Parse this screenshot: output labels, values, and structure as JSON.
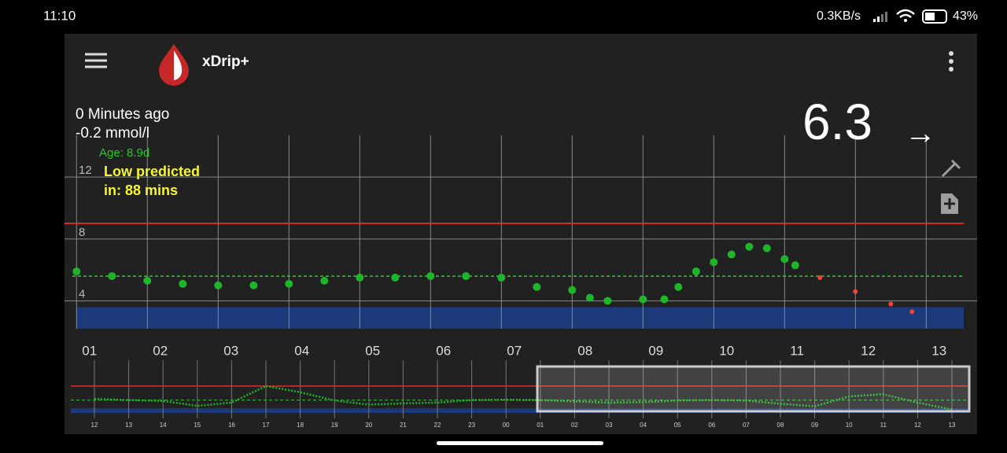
{
  "status_bar": {
    "time": "11:10",
    "network": "0.3KB/s",
    "battery": "43%"
  },
  "app_bar": {
    "title": "xDrip+"
  },
  "reading": {
    "minutes_ago": "0 Minutes ago",
    "delta": "-0.2 mmol/l",
    "age": "Age: 8.9d",
    "prediction": [
      "Low predicted",
      "in: 88 mins"
    ],
    "value": "6.3",
    "trend": "→"
  },
  "chart_data": [
    {
      "type": "scatter",
      "color": "#1fb52a",
      "x": [
        1,
        1.5,
        2,
        2.5,
        3,
        3.5,
        4,
        4.5,
        5,
        5.5,
        6,
        6.5,
        7,
        7.5,
        8,
        8.25,
        8.5,
        9,
        9.3,
        9.5,
        9.75,
        10,
        10.25,
        10.5,
        10.75,
        11,
        11.15
      ],
      "values": [
        5.9,
        5.6,
        5.3,
        5.1,
        5.0,
        5.0,
        5.1,
        5.3,
        5.5,
        5.5,
        5.6,
        5.6,
        5.5,
        4.9,
        4.7,
        4.2,
        4.0,
        4.1,
        4.1,
        4.9,
        5.9,
        6.5,
        7.0,
        7.5,
        7.4,
        6.7,
        6.3
      ],
      "prediction_color": "#f44336",
      "prediction_x": [
        11.5,
        12,
        12.5,
        12.8
      ],
      "prediction_values": [
        5.5,
        4.6,
        3.8,
        3.3
      ],
      "high": 9.0,
      "low": 3.6,
      "target": 5.6,
      "xlim": [
        0.83,
        13.53
      ],
      "ylim": [
        2.2,
        14.7
      ],
      "xticks": [
        {
          "value": 1,
          "label": "01"
        },
        {
          "value": 2,
          "label": "02"
        },
        {
          "value": 3,
          "label": "03"
        },
        {
          "value": 4,
          "label": "04"
        },
        {
          "value": 5,
          "label": "05"
        },
        {
          "value": 6,
          "label": "06"
        },
        {
          "value": 7,
          "label": "07"
        },
        {
          "value": 8,
          "label": "08"
        },
        {
          "value": 9,
          "label": "09"
        },
        10,
        11,
        12,
        13
      ],
      "yticks": [
        4,
        8,
        12
      ],
      "grid": true
    },
    {
      "type": "line",
      "color": "#1fb52a",
      "categories": [
        "12",
        "13",
        "14",
        "15",
        "16",
        "17",
        "18",
        "19",
        "20",
        "21",
        "22",
        "23",
        "00",
        "01",
        "02",
        "03",
        "04",
        "05",
        "06",
        "07",
        "08",
        "09",
        "10",
        "11",
        "12",
        "13"
      ],
      "values": [
        5.9,
        5.6,
        5.4,
        4.2,
        5.0,
        9.0,
        7.5,
        5.5,
        4.5,
        4.8,
        5.0,
        5.6,
        5.7,
        5.6,
        5.3,
        5.0,
        5.1,
        5.5,
        5.6,
        5.5,
        4.7,
        4.1,
        6.5,
        7.0,
        5.0,
        3.3
      ],
      "high": 9.0,
      "low": 3.6,
      "target": 5.6,
      "ylim": [
        2.5,
        10.5
      ],
      "grid": true
    }
  ]
}
